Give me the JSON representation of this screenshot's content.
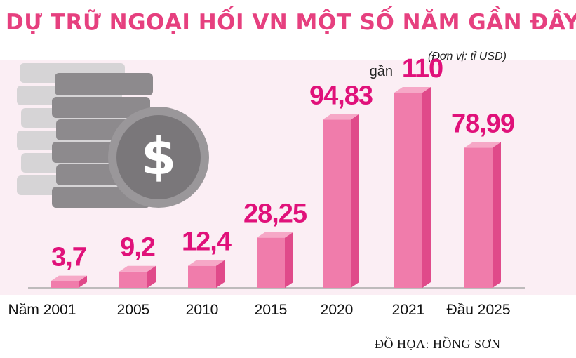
{
  "title": "DỰ TRỮ NGOẠI HỐI VN MỘT SỐ NĂM GẦN ĐÂY",
  "unit": "(Đơn vị: tỉ USD)",
  "credit": "ĐỒ HỌA: HỒNG SƠN",
  "illustration": "coin-stack-dollar-icon",
  "chart_data": {
    "type": "bar",
    "title": "DỰ TRỮ NGOẠI HỐI VN MỘT SỐ NĂM GẦN ĐÂY",
    "categories": [
      "Năm 2001",
      "2005",
      "2010",
      "2015",
      "2020",
      "2021",
      "Đầu 2025"
    ],
    "values": [
      3.7,
      9.2,
      12.4,
      28.25,
      94.83,
      110,
      78.99
    ],
    "value_labels": [
      "3,7",
      "9,2",
      "12,4",
      "28,25",
      "94,83",
      "110",
      "78,99"
    ],
    "value_prefixes": [
      "",
      "",
      "",
      "",
      "",
      "gần",
      ""
    ],
    "ylim": [
      0,
      115
    ],
    "grid": false,
    "legend": "none",
    "colors": {
      "bar_front": "#f07cab",
      "bar_side": "#e04a8a",
      "bar_top": "#f6a8c7",
      "label": "#e0117a",
      "baseline": "#aaaaaa"
    }
  }
}
